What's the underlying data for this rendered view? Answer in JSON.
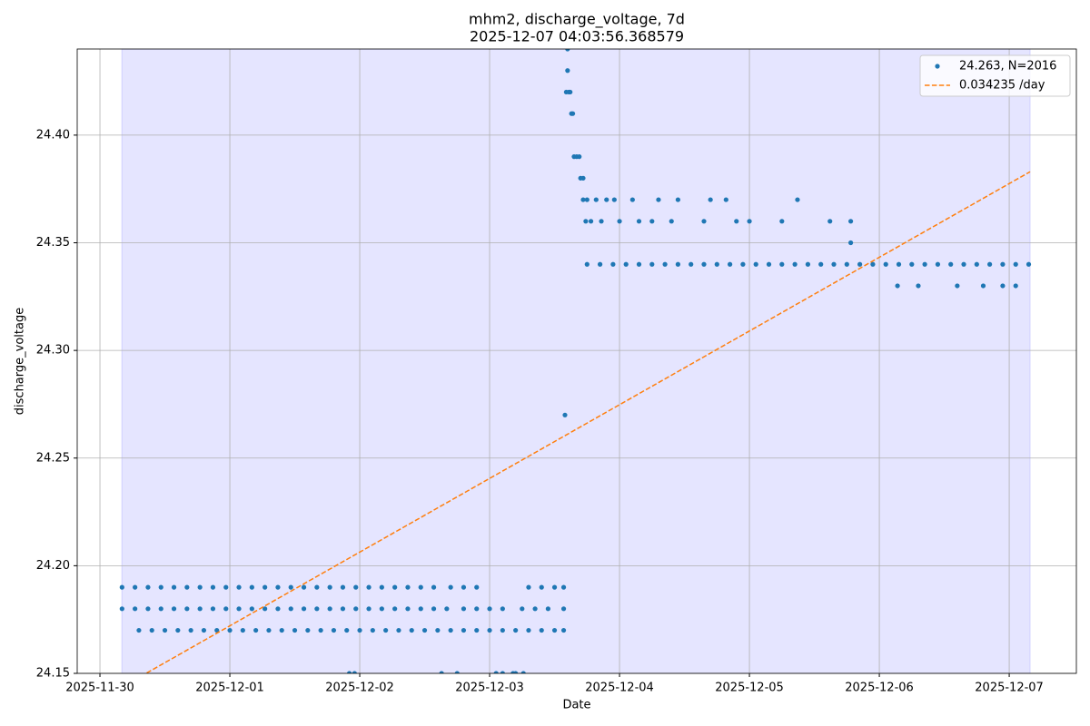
{
  "chart_data": {
    "type": "scatter",
    "title": "mhm2, discharge_voltage, 7d",
    "subtitle": "2025-12-07 04:03:56.368579",
    "x_label": "Date",
    "y_label": "discharge_voltage",
    "xlim": [
      -0.175,
      7.517
    ],
    "ylim": [
      24.15,
      24.44
    ],
    "xticks": [
      {
        "value": 0,
        "label": "2025-11-30"
      },
      {
        "value": 1,
        "label": "2025-12-01"
      },
      {
        "value": 2,
        "label": "2025-12-02"
      },
      {
        "value": 3,
        "label": "2025-12-03"
      },
      {
        "value": 4,
        "label": "2025-12-04"
      },
      {
        "value": 5,
        "label": "2025-12-05"
      },
      {
        "value": 6,
        "label": "2025-12-06"
      },
      {
        "value": 7,
        "label": "2025-12-07"
      }
    ],
    "yticks": [
      24.15,
      {
        "value": 24.2,
        "label": "24.20"
      },
      24.25,
      {
        "value": 24.3,
        "label": "24.30"
      },
      24.35,
      {
        "value": 24.4,
        "label": "24.40"
      }
    ],
    "grid": true,
    "legend": "upper right",
    "span": {
      "x": [
        0.168,
        7.161
      ],
      "color": "#0000ff"
    },
    "series": [
      {
        "name": "24.263, N=2016",
        "color": "#1f77b4",
        "kind": "scatter",
        "x": [
          0.17,
          0.27,
          0.37,
          0.47,
          0.57,
          0.67,
          0.77,
          0.87,
          0.97,
          1.07,
          1.17,
          1.27,
          1.37,
          1.47,
          1.57,
          1.67,
          1.77,
          1.87,
          1.97,
          2.07,
          2.17,
          2.27,
          2.37,
          2.47,
          2.57,
          2.7,
          2.8,
          2.9,
          3.3,
          3.4,
          3.5,
          3.57,
          0.17,
          0.27,
          0.37,
          0.47,
          0.57,
          0.67,
          0.77,
          0.87,
          0.97,
          1.07,
          1.17,
          1.27,
          1.37,
          1.47,
          1.57,
          1.67,
          1.77,
          1.87,
          1.97,
          2.07,
          2.17,
          2.27,
          2.37,
          2.47,
          2.57,
          2.67,
          2.8,
          2.9,
          3.0,
          3.1,
          3.25,
          3.35,
          3.45,
          3.57,
          0.3,
          0.4,
          0.5,
          0.6,
          0.7,
          0.8,
          0.9,
          1.0,
          1.1,
          1.2,
          1.3,
          1.4,
          1.5,
          1.6,
          1.7,
          1.8,
          1.9,
          2.0,
          2.1,
          2.2,
          2.3,
          2.4,
          2.5,
          2.6,
          2.7,
          2.8,
          2.9,
          3.0,
          3.1,
          3.2,
          3.3,
          3.4,
          3.5,
          3.57,
          1.92,
          1.96,
          2.63,
          2.75,
          3.05,
          3.1,
          3.18,
          3.2,
          3.26,
          3.58,
          3.59,
          3.6,
          3.6,
          3.61,
          3.62,
          3.63,
          3.64,
          3.65,
          3.67,
          3.69,
          3.7,
          3.72,
          3.72,
          3.75,
          3.74,
          3.78,
          3.82,
          3.86,
          3.9,
          3.96,
          4.0,
          4.1,
          4.15,
          4.25,
          4.3,
          4.45,
          4.4,
          4.65,
          4.7,
          4.82,
          4.9,
          5.0,
          5.25,
          5.37,
          5.62,
          5.78,
          5.78,
          6.14,
          6.3,
          6.6,
          6.8,
          6.95,
          7.05,
          3.75,
          3.85,
          3.95,
          4.05,
          4.15,
          4.25,
          4.35,
          4.45,
          4.55,
          4.65,
          4.75,
          4.85,
          4.95,
          5.05,
          5.15,
          5.25,
          5.35,
          5.45,
          5.55,
          5.65,
          5.75,
          5.85,
          5.95,
          6.05,
          6.15,
          6.25,
          6.35,
          6.45,
          6.55,
          6.65,
          6.75,
          6.85,
          6.95,
          7.05,
          7.15
        ],
        "values": [
          24.19,
          24.19,
          24.19,
          24.19,
          24.19,
          24.19,
          24.19,
          24.19,
          24.19,
          24.19,
          24.19,
          24.19,
          24.19,
          24.19,
          24.19,
          24.19,
          24.19,
          24.19,
          24.19,
          24.19,
          24.19,
          24.19,
          24.19,
          24.19,
          24.19,
          24.19,
          24.19,
          24.19,
          24.19,
          24.19,
          24.19,
          24.19,
          24.18,
          24.18,
          24.18,
          24.18,
          24.18,
          24.18,
          24.18,
          24.18,
          24.18,
          24.18,
          24.18,
          24.18,
          24.18,
          24.18,
          24.18,
          24.18,
          24.18,
          24.18,
          24.18,
          24.18,
          24.18,
          24.18,
          24.18,
          24.18,
          24.18,
          24.18,
          24.18,
          24.18,
          24.18,
          24.18,
          24.18,
          24.18,
          24.18,
          24.18,
          24.17,
          24.17,
          24.17,
          24.17,
          24.17,
          24.17,
          24.17,
          24.17,
          24.17,
          24.17,
          24.17,
          24.17,
          24.17,
          24.17,
          24.17,
          24.17,
          24.17,
          24.17,
          24.17,
          24.17,
          24.17,
          24.17,
          24.17,
          24.17,
          24.17,
          24.17,
          24.17,
          24.17,
          24.17,
          24.17,
          24.17,
          24.17,
          24.17,
          24.17,
          24.15,
          24.15,
          24.15,
          24.15,
          24.15,
          24.15,
          24.15,
          24.15,
          24.15,
          24.27,
          24.42,
          24.44,
          24.43,
          24.42,
          24.42,
          24.41,
          24.41,
          24.39,
          24.39,
          24.39,
          24.38,
          24.38,
          24.37,
          24.37,
          24.36,
          24.36,
          24.37,
          24.36,
          24.37,
          24.37,
          24.36,
          24.37,
          24.36,
          24.36,
          24.37,
          24.37,
          24.36,
          24.36,
          24.37,
          24.37,
          24.36,
          24.36,
          24.36,
          24.37,
          24.36,
          24.36,
          24.35,
          24.33,
          24.33,
          24.33,
          24.33,
          24.33,
          24.33,
          24.34,
          24.34,
          24.34,
          24.34,
          24.34,
          24.34,
          24.34,
          24.34,
          24.34,
          24.34,
          24.34,
          24.34,
          24.34,
          24.34,
          24.34,
          24.34,
          24.34,
          24.34,
          24.34,
          24.34,
          24.34,
          24.34,
          24.34,
          24.34,
          24.34,
          24.34,
          24.34,
          24.34,
          24.34,
          24.34,
          24.34,
          24.34,
          24.34,
          24.34,
          24.34
        ]
      },
      {
        "name": "0.034235 /day",
        "color": "#ff7f0e",
        "kind": "line",
        "style": "dashed",
        "x": [
          0.168,
          7.161
        ],
        "values": [
          24.1436,
          24.383
        ]
      }
    ]
  }
}
